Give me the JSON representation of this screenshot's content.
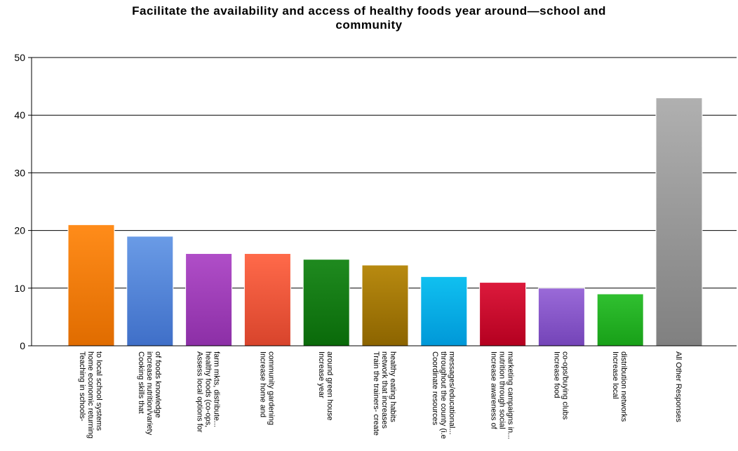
{
  "chart_data": {
    "type": "bar",
    "title_lines": [
      "Facilitate the availability and access of healthy foods year around—school and",
      "community"
    ],
    "xlabel": "",
    "ylabel": "",
    "ylim": [
      0,
      50
    ],
    "yticks": [
      0,
      10,
      20,
      30,
      40,
      50
    ],
    "grid": true,
    "categories": [
      [
        "Teaching in schools-",
        "home economic returning",
        "to local school systems"
      ],
      [
        "Cooking skills that",
        "increase nutrition/variety",
        "of foods knowledge"
      ],
      [
        "Assess local options for",
        "healthy foods (co-ops,",
        "farm mkts, distribute..."
      ],
      [
        "Increase home and",
        "community gardening"
      ],
      [
        "Increase year",
        "around green house"
      ],
      [
        "Train the trainers- create",
        "network that increases",
        "healthy eating habits"
      ],
      [
        "Coordinate resources",
        "throughout the county (i.e",
        "messages/educational..."
      ],
      [
        "Increase awareness of",
        "nutrition through social",
        "marketing campaigns in..."
      ],
      [
        "Increase food",
        "co-ops/buying clubs"
      ],
      [
        "Increase local",
        "distribution networks"
      ],
      [
        "All Other Responses"
      ]
    ],
    "values": [
      21,
      19,
      16,
      16,
      15,
      14,
      12,
      11,
      10,
      9,
      43
    ],
    "colors": [
      [
        "#ff8c1a",
        "#e06c00"
      ],
      [
        "#6a9be6",
        "#3f6fc8"
      ],
      [
        "#b04ec8",
        "#8c2fa6"
      ],
      [
        "#ff6a4a",
        "#d8442c"
      ],
      [
        "#1f8a1f",
        "#0a6a0a"
      ],
      [
        "#b88a10",
        "#8c6400"
      ],
      [
        "#10c0f0",
        "#0098d8"
      ],
      [
        "#dc1a3c",
        "#b40020"
      ],
      [
        "#9a6ad8",
        "#7444b8"
      ],
      [
        "#30c030",
        "#18a018"
      ],
      [
        "#b0b0b0",
        "#808080"
      ]
    ]
  }
}
